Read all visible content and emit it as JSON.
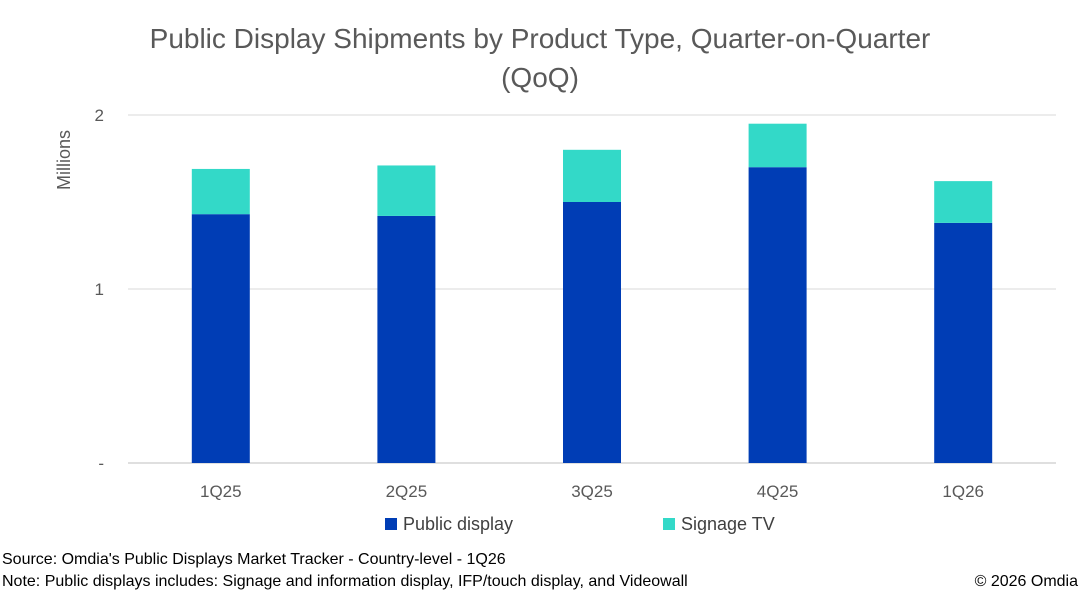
{
  "chart_data": {
    "type": "bar",
    "stacked": true,
    "title_line1": "Public Display Shipments by Product Type, Quarter-on-Quarter",
    "title_line2": "(QoQ)",
    "ylabel": "Millions",
    "ylim": [
      0,
      2
    ],
    "yticks": [
      {
        "value": 0,
        "label": "-"
      },
      {
        "value": 1,
        "label": "1"
      },
      {
        "value": 2,
        "label": "2"
      }
    ],
    "categories": [
      "1Q25",
      "2Q25",
      "3Q25",
      "4Q25",
      "1Q26"
    ],
    "series": [
      {
        "name": "Public display",
        "color": "#003DB5",
        "values": [
          1.43,
          1.42,
          1.5,
          1.7,
          1.38
        ]
      },
      {
        "name": "Signage TV",
        "color": "#33D9C8",
        "values": [
          0.26,
          0.29,
          0.3,
          0.25,
          0.24
        ]
      }
    ],
    "grid": true,
    "legend": "bottom"
  },
  "footer": {
    "source": "Source: Omdia's Public Displays Market Tracker - Country-level - 1Q26",
    "note": "Note: Public displays includes: Signage and information display, IFP/touch display, and Videowall",
    "copyright": "© 2026 Omdia"
  }
}
